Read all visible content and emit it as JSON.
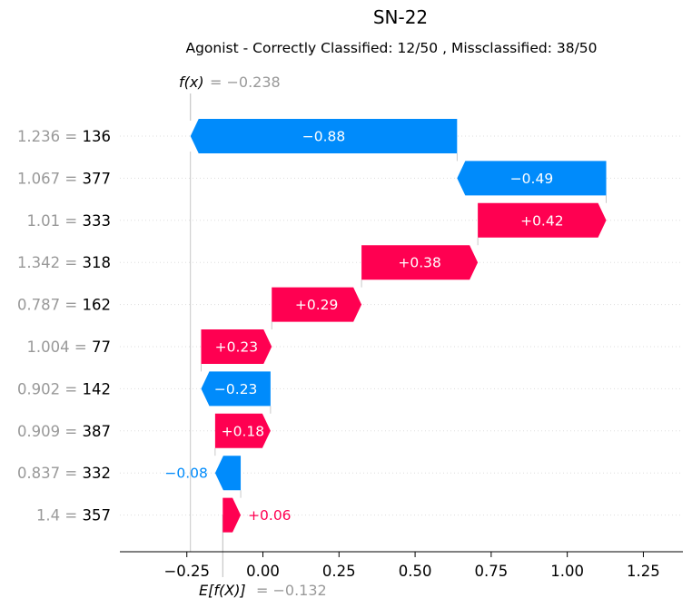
{
  "chart_data": {
    "type": "waterfall",
    "title": "SN-22",
    "subtitle": "Agonist - Correctly Classified: 12/50 , Missclassified: 38/50",
    "fx_label": "f(x)",
    "fx_value": "= −0.238",
    "efx_label": "E[f(X)]",
    "efx_value": "= −0.132",
    "fx": -0.238,
    "base_value": -0.132,
    "xlim": [
      -0.47,
      1.38
    ],
    "x_ticks": [
      -0.25,
      0.0,
      0.25,
      0.5,
      0.75,
      1.0,
      1.25
    ],
    "x_tick_labels": [
      "−0.25",
      "0.00",
      "0.25",
      "0.50",
      "0.75",
      "1.00",
      "1.25"
    ],
    "features": [
      {
        "value": "1.236 =",
        "name": "136",
        "shap": -0.88,
        "label": "−0.88",
        "start": 0.638,
        "end": -0.238
      },
      {
        "value": "1.067 =",
        "name": "377",
        "shap": -0.49,
        "label": "−0.49",
        "start": 1.128,
        "end": 0.638
      },
      {
        "value": "1.01 =",
        "name": "333",
        "shap": 0.42,
        "label": "+0.42",
        "start": 0.706,
        "end": 1.128
      },
      {
        "value": "1.342 =",
        "name": "318",
        "shap": 0.38,
        "label": "+0.38",
        "start": 0.324,
        "end": 0.706
      },
      {
        "value": "0.787 =",
        "name": "162",
        "shap": 0.29,
        "label": "+0.29",
        "start": 0.029,
        "end": 0.324
      },
      {
        "value": "1.004 =",
        "name": "77",
        "shap": 0.23,
        "label": "+0.23",
        "start": -0.203,
        "end": 0.029
      },
      {
        "value": "0.902 =",
        "name": "142",
        "shap": -0.23,
        "label": "−0.23",
        "start": 0.025,
        "end": -0.203
      },
      {
        "value": "0.909 =",
        "name": "387",
        "shap": 0.18,
        "label": "+0.18",
        "start": -0.157,
        "end": 0.025
      },
      {
        "value": "0.837 =",
        "name": "332",
        "shap": -0.08,
        "label": "−0.08",
        "start": -0.073,
        "end": -0.157
      },
      {
        "value": "1.4 =",
        "name": "357",
        "shap": 0.06,
        "label": "+0.06",
        "start": -0.132,
        "end": -0.073
      }
    ],
    "colors": {
      "positive": "#ff0051",
      "negative": "#008bfb",
      "feature_value": "#999999",
      "feature_name": "#000000",
      "grid": "#dddddd",
      "connector": "#bbbbbb"
    }
  }
}
